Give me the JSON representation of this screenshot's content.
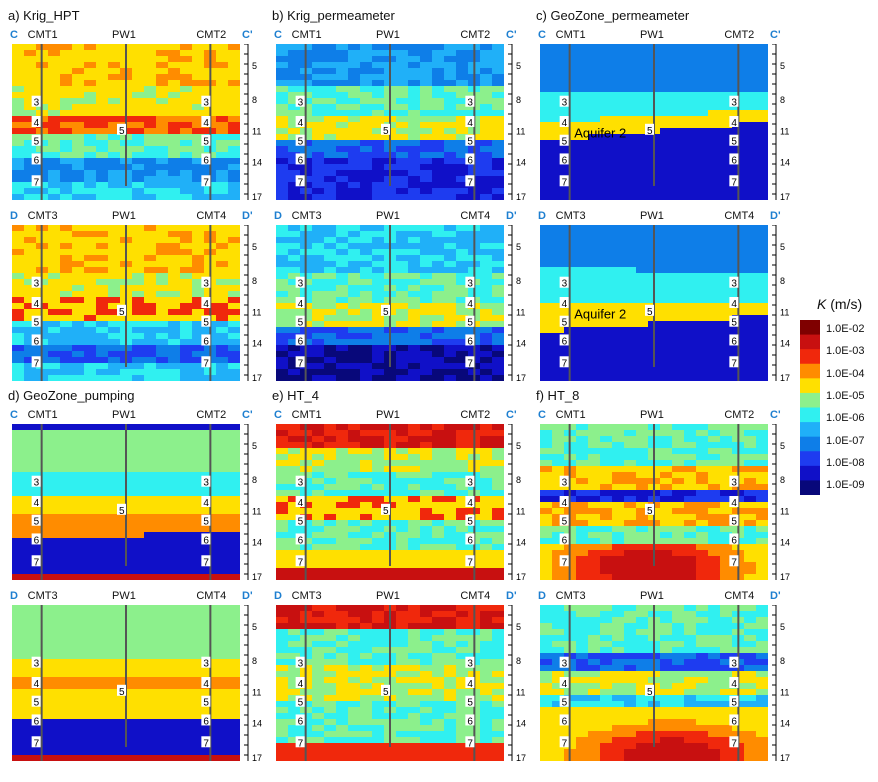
{
  "panels": [
    {
      "id": "a",
      "title": "a) Krig_HPT",
      "left_label": "C",
      "right_label": "C'",
      "wells": [
        "CMT1",
        "PW1",
        "CMT2"
      ],
      "variant": "krig_hpt_top"
    },
    {
      "id": "b",
      "title": "b) Krig_permeameter",
      "left_label": "C",
      "right_label": "C'",
      "wells": [
        "CMT1",
        "PW1",
        "CMT2"
      ],
      "variant": "krig_perm_top"
    },
    {
      "id": "c",
      "title": "c) GeoZone_permeameter",
      "left_label": "C",
      "right_label": "C'",
      "wells": [
        "CMT1",
        "PW1",
        "CMT2"
      ],
      "variant": "geo_perm_top",
      "annotation": "Aquifer 2"
    },
    {
      "id": "a2",
      "title": "",
      "left_label": "D",
      "right_label": "D'",
      "wells": [
        "CMT3",
        "PW1",
        "CMT4"
      ],
      "variant": "krig_hpt_bot"
    },
    {
      "id": "b2",
      "title": "",
      "left_label": "D",
      "right_label": "D'",
      "wells": [
        "CMT3",
        "PW1",
        "CMT4"
      ],
      "variant": "krig_perm_bot"
    },
    {
      "id": "c2",
      "title": "",
      "left_label": "D",
      "right_label": "D'",
      "wells": [
        "CMT3",
        "PW1",
        "CMT4"
      ],
      "variant": "geo_perm_bot",
      "annotation": "Aquifer 2"
    },
    {
      "id": "d",
      "title": "d) GeoZone_pumping",
      "left_label": "C",
      "right_label": "C'",
      "wells": [
        "CMT1",
        "PW1",
        "CMT2"
      ],
      "variant": "geo_pump_top"
    },
    {
      "id": "e",
      "title": "e) HT_4",
      "left_label": "C",
      "right_label": "C'",
      "wells": [
        "CMT1",
        "PW1",
        "CMT2"
      ],
      "variant": "ht4_top"
    },
    {
      "id": "f",
      "title": "f) HT_8",
      "left_label": "C",
      "right_label": "C'",
      "wells": [
        "CMT1",
        "PW1",
        "CMT2"
      ],
      "variant": "ht8_top"
    },
    {
      "id": "d2",
      "title": "",
      "left_label": "D",
      "right_label": "D'",
      "wells": [
        "CMT3",
        "PW1",
        "CMT4"
      ],
      "variant": "geo_pump_bot"
    },
    {
      "id": "e2",
      "title": "",
      "left_label": "D",
      "right_label": "D'",
      "wells": [
        "CMT3",
        "PW1",
        "CMT4"
      ],
      "variant": "ht4_bot"
    },
    {
      "id": "f2",
      "title": "",
      "left_label": "D",
      "right_label": "D'",
      "wells": [
        "CMT3",
        "PW1",
        "CMT4"
      ],
      "variant": "ht8_bot"
    }
  ],
  "port_labels": {
    "left": [
      "3",
      "4",
      "5",
      "6",
      "7"
    ],
    "center": "5",
    "right": [
      "3",
      "4",
      "5",
      "6",
      "7"
    ]
  },
  "depth_ticks": [
    "5",
    "8",
    "11",
    "14",
    "17"
  ],
  "legend": {
    "title_symbol": "K",
    "title_units": " (m/s)",
    "labels": [
      "1.0E-02",
      "1.0E-03",
      "1.0E-04",
      "1.0E-05",
      "1.0E-06",
      "1.0E-07",
      "1.0E-08",
      "1.0E-09"
    ],
    "colors": [
      "#7f0000",
      "#c81010",
      "#f0280c",
      "#ff8c00",
      "#ffe000",
      "#8cf08c",
      "#30f0f0",
      "#20b0f8",
      "#0e7ee8",
      "#1e3cf0",
      "#1010c8",
      "#08087a"
    ]
  }
}
